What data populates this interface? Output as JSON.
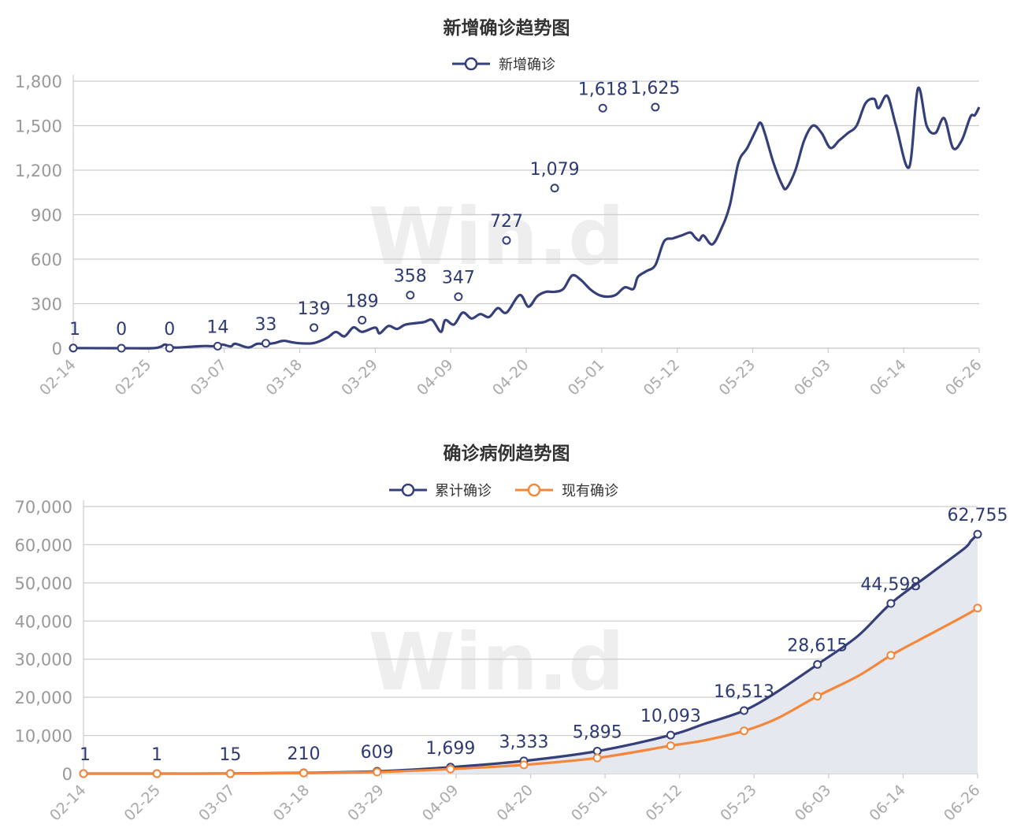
{
  "watermark": "Win.d",
  "chart_data": [
    {
      "type": "line",
      "title": "新增确诊趋势图",
      "legend": [
        "新增确诊"
      ],
      "legend_position": "top-center",
      "grid": true,
      "ylim": [
        0,
        1800
      ],
      "yticks": [
        "0",
        "300",
        "600",
        "900",
        "1,200",
        "1,500",
        "1,800"
      ],
      "xticks": [
        "02-14",
        "02-25",
        "03-07",
        "03-18",
        "03-29",
        "04-09",
        "04-20",
        "05-01",
        "05-12",
        "05-23",
        "06-03",
        "06-14",
        "06-26"
      ],
      "series": [
        {
          "name": "新增确诊",
          "color": "#353f7a",
          "points": [
            [
              0,
              1
            ],
            [
              11,
              0
            ],
            [
              18,
              0
            ],
            [
              20,
              10
            ],
            [
              21,
              25
            ],
            [
              23,
              5
            ],
            [
              27,
              10
            ],
            [
              30,
              15
            ],
            [
              32,
              14
            ],
            [
              34,
              25
            ],
            [
              36,
              12
            ],
            [
              37,
              30
            ],
            [
              40,
              5
            ],
            [
              42,
              30
            ],
            [
              44,
              28
            ],
            [
              46,
              35
            ],
            [
              48,
              50
            ],
            [
              50,
              40
            ],
            [
              52,
              33
            ],
            [
              55,
              35
            ],
            [
              58,
              70
            ],
            [
              60,
              110
            ],
            [
              62,
              80
            ],
            [
              64,
              140
            ],
            [
              66,
              110
            ],
            [
              69,
              139
            ],
            [
              70,
              100
            ],
            [
              72,
              150
            ],
            [
              74,
              130
            ],
            [
              76,
              160
            ],
            [
              80,
              175
            ],
            [
              82,
              190
            ],
            [
              84,
              110
            ],
            [
              85,
              189
            ],
            [
              87,
              160
            ],
            [
              89,
              240
            ],
            [
              91,
              200
            ],
            [
              93,
              230
            ],
            [
              95,
              210
            ],
            [
              97,
              270
            ],
            [
              99,
              240
            ],
            [
              102,
              358
            ],
            [
              104,
              280
            ],
            [
              106,
              350
            ],
            [
              108,
              380
            ],
            [
              110,
              380
            ],
            [
              112,
              400
            ],
            [
              114,
              490
            ],
            [
              116,
              460
            ],
            [
              118,
              400
            ],
            [
              120,
              360
            ],
            [
              122,
              347
            ],
            [
              124,
              360
            ],
            [
              126,
              410
            ],
            [
              128,
              400
            ],
            [
              129,
              480
            ],
            [
              131,
              520
            ],
            [
              133,
              560
            ],
            [
              135,
              720
            ],
            [
              137,
              740
            ],
            [
              139,
              760
            ],
            [
              141,
              780
            ],
            [
              142,
              750
            ],
            [
              143,
              727
            ],
            [
              144,
              760
            ],
            [
              146,
              700
            ],
            [
              148,
              800
            ],
            [
              150,
              960
            ],
            [
              152,
              1250
            ],
            [
              154,
              1350
            ],
            [
              156,
              1470
            ],
            [
              157,
              1520
            ],
            [
              158,
              1450
            ],
            [
              160,
              1250
            ],
            [
              162,
              1100
            ],
            [
              163,
              1079
            ],
            [
              165,
              1200
            ],
            [
              167,
              1400
            ],
            [
              169,
              1500
            ],
            [
              171,
              1450
            ],
            [
              173,
              1350
            ],
            [
              175,
              1400
            ],
            [
              177,
              1450
            ],
            [
              179,
              1500
            ],
            [
              181,
              1650
            ],
            [
              183,
              1680
            ],
            [
              184,
              1618
            ],
            [
              186,
              1700
            ],
            [
              188,
              1500
            ],
            [
              191,
              1220
            ],
            [
              193,
              1750
            ],
            [
              195,
              1500
            ],
            [
              197,
              1450
            ],
            [
              199,
              1550
            ],
            [
              201,
              1350
            ],
            [
              203,
              1400
            ],
            [
              205,
              1560
            ],
            [
              206,
              1570
            ],
            [
              207,
              1625
            ]
          ],
          "labels": [
            [
              0,
              1
            ],
            [
              11,
              0
            ],
            [
              22,
              0
            ],
            [
              33,
              14
            ],
            [
              44,
              33
            ],
            [
              55,
              139
            ],
            [
              66,
              189
            ],
            [
              77,
              358
            ],
            [
              88,
              347
            ],
            [
              99,
              727
            ],
            [
              110,
              1079
            ],
            [
              121,
              1618
            ],
            [
              133,
              1625
            ]
          ]
        }
      ]
    },
    {
      "type": "area",
      "title": "确诊病例趋势图",
      "legend": [
        "累计确诊",
        "现有确诊"
      ],
      "legend_position": "top-center",
      "grid": true,
      "ylim": [
        0,
        70000
      ],
      "yticks": [
        "0",
        "10,000",
        "20,000",
        "30,000",
        "40,000",
        "50,000",
        "60,000",
        "70,000"
      ],
      "xticks": [
        "02-14",
        "02-25",
        "03-07",
        "03-18",
        "03-29",
        "04-09",
        "04-20",
        "05-01",
        "05-12",
        "05-23",
        "06-03",
        "06-14",
        "06-26"
      ],
      "series": [
        {
          "name": "累计确诊",
          "color": "#353f7a",
          "fill": "#e6e8f0",
          "points": [
            [
              0,
              1
            ],
            [
              11,
              1
            ],
            [
              22,
              15
            ],
            [
              33,
              210
            ],
            [
              44,
              609
            ],
            [
              55,
              1699
            ],
            [
              66,
              3333
            ],
            [
              77,
              5895
            ],
            [
              88,
              10093
            ],
            [
              93,
              13000
            ],
            [
              99,
              16513
            ],
            [
              104,
              21500
            ],
            [
              110,
              28615
            ],
            [
              116,
              36000
            ],
            [
              121,
              44598
            ],
            [
              127,
              52500
            ],
            [
              132,
              59000
            ],
            [
              133,
              61000
            ],
            [
              134,
              62755
            ]
          ],
          "labels": [
            [
              0,
              1
            ],
            [
              11,
              1
            ],
            [
              22,
              15
            ],
            [
              33,
              210
            ],
            [
              44,
              609
            ],
            [
              55,
              1699
            ],
            [
              66,
              3333
            ],
            [
              77,
              5895
            ],
            [
              88,
              10093
            ],
            [
              99,
              16513
            ],
            [
              110,
              28615
            ],
            [
              121,
              44598
            ],
            [
              134,
              62755
            ]
          ]
        },
        {
          "name": "现有确诊",
          "color": "#f4873a",
          "points": [
            [
              0,
              0
            ],
            [
              11,
              0
            ],
            [
              22,
              10
            ],
            [
              33,
              150
            ],
            [
              44,
              420
            ],
            [
              55,
              1200
            ],
            [
              66,
              2300
            ],
            [
              77,
              4100
            ],
            [
              88,
              7300
            ],
            [
              93,
              8700
            ],
            [
              99,
              11200
            ],
            [
              104,
              14500
            ],
            [
              110,
              20300
            ],
            [
              116,
              25500
            ],
            [
              121,
              31000
            ],
            [
              125,
              34800
            ],
            [
              129,
              38500
            ],
            [
              133,
              42300
            ],
            [
              134,
              43400
            ]
          ]
        }
      ]
    }
  ]
}
